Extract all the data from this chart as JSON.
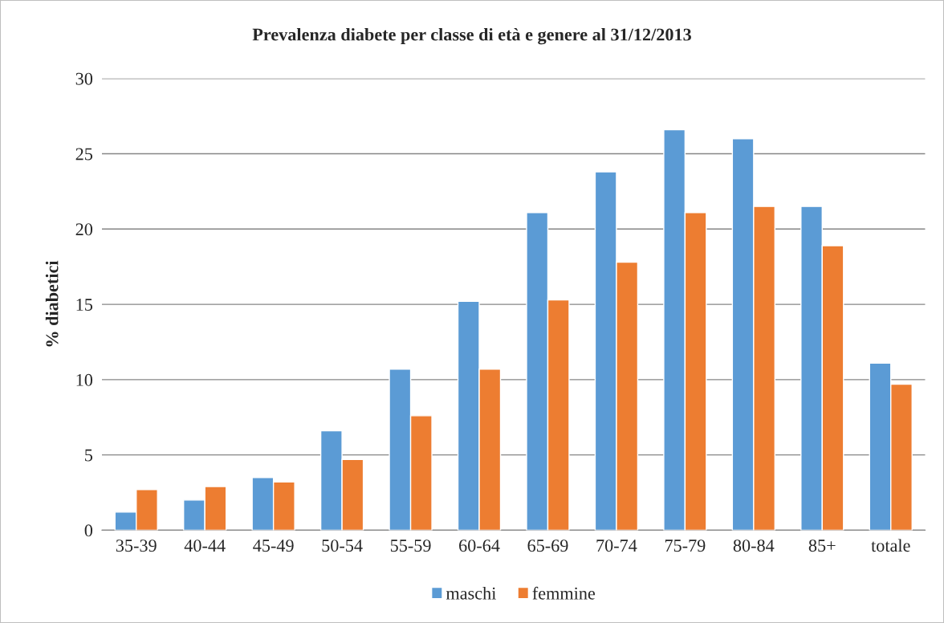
{
  "chart_data": {
    "type": "bar",
    "title": "Prevalenza diabete per classe di età e genere al 31/12/2013",
    "ylabel": "% diabetici",
    "categories": [
      "35-39",
      "40-44",
      "45-49",
      "50-54",
      "55-59",
      "60-64",
      "65-69",
      "70-74",
      "75-79",
      "80-84",
      "85+",
      "totale"
    ],
    "series": [
      {
        "name": "maschi",
        "color": "#5b9bd5",
        "values": [
          1.2,
          2.0,
          3.5,
          6.6,
          10.7,
          15.2,
          21.1,
          23.8,
          26.6,
          26.0,
          21.5,
          11.1
        ]
      },
      {
        "name": "femmine",
        "color": "#ed7d31",
        "values": [
          2.7,
          2.9,
          3.2,
          4.7,
          7.6,
          10.7,
          15.3,
          17.8,
          21.1,
          21.5,
          18.9,
          9.7
        ]
      }
    ],
    "ylim": [
      0,
      30
    ],
    "yticks": [
      0,
      5,
      10,
      15,
      20,
      25,
      30
    ],
    "grid": "y",
    "legend": "bottom"
  }
}
